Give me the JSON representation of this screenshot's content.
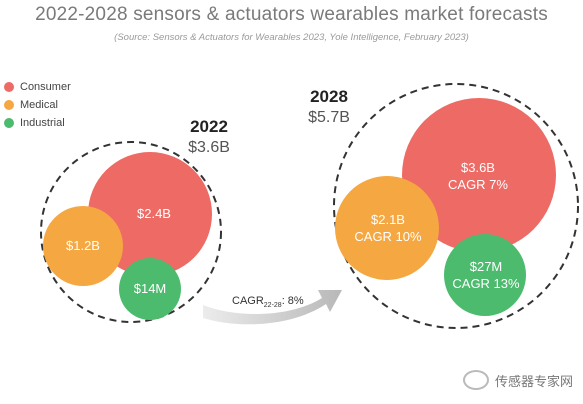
{
  "title": "2022-2028 sensors & actuators wearables market forecasts",
  "subtitle": "(Source: Sensors & Actuators for Wearables 2023, Yole Intelligence, February 2023)",
  "legend": [
    {
      "label": "Consumer",
      "color": "#ee6a64"
    },
    {
      "label": "Medical",
      "color": "#f5a742"
    },
    {
      "label": "Industrial",
      "color": "#4cbb6e"
    }
  ],
  "chart_data": {
    "type": "bubble",
    "groups": [
      {
        "year": "2022",
        "total": "$3.6B",
        "segments": [
          {
            "category": "Consumer",
            "label": "$2.4B",
            "value": 2.4,
            "cagr": ""
          },
          {
            "category": "Medical",
            "label": "$1.2B",
            "value": 1.2,
            "cagr": ""
          },
          {
            "category": "Industrial",
            "label": "$14M",
            "value": 0.014,
            "cagr": ""
          }
        ]
      },
      {
        "year": "2028",
        "total": "$5.7B",
        "segments": [
          {
            "category": "Consumer",
            "label": "$3.6B",
            "value": 3.6,
            "cagr": "CAGR 7%"
          },
          {
            "category": "Medical",
            "label": "$2.1B",
            "value": 2.1,
            "cagr": "CAGR 10%"
          },
          {
            "category": "Industrial",
            "label": "$27M",
            "value": 0.027,
            "cagr": "CAGR 13%"
          }
        ]
      }
    ],
    "overall_cagr": {
      "prefix": "CAGR",
      "subscript": "22-28",
      "value": ": 8%"
    }
  },
  "watermark": {
    "text": "传感器专家网"
  }
}
